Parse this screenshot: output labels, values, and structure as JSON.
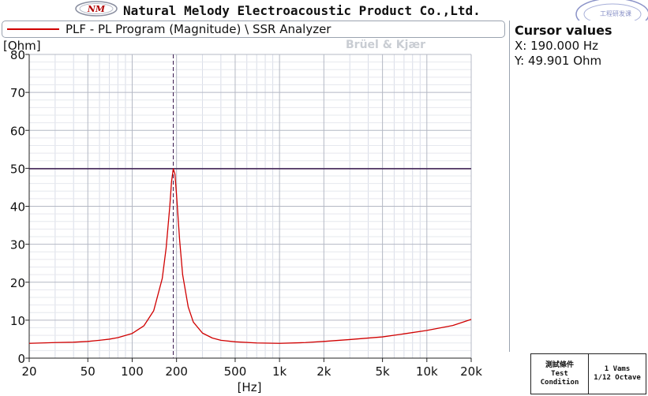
{
  "header": {
    "company": "Natural Melody Electroacoustic Product Co.,Ltd.",
    "logo_text": "NM",
    "stamp_text": "工程研发课"
  },
  "legend": {
    "text": "PLF - PL Program (Magnitude) \\ SSR Analyzer",
    "line_color": "#d00000",
    "watermark": "Brüel & Kjær"
  },
  "cursor_panel": {
    "title": "Cursor values",
    "x_label": "X: 190.000 Hz",
    "y_label": "Y: 49.901 Ohm"
  },
  "test_condition": {
    "label_cn": "測試條件",
    "label_en_1": "Test",
    "label_en_2": "Condition",
    "value_1": "1 Vams",
    "value_2": "1/12 Octave"
  },
  "chart_data": {
    "type": "line",
    "xscale": "log",
    "xlim": [
      20,
      20000
    ],
    "ylim": [
      0,
      80
    ],
    "xlabel": "[Hz]",
    "ylabel": "[Ohm]",
    "xticks": [
      20,
      50,
      100,
      200,
      500,
      1000,
      2000,
      5000,
      10000,
      20000
    ],
    "xtick_labels": [
      "20",
      "50",
      "100",
      "200",
      "500",
      "1k",
      "2k",
      "5k",
      "10k",
      "20k"
    ],
    "yticks": [
      0,
      10,
      20,
      30,
      40,
      50,
      60,
      70,
      80
    ],
    "grid": true,
    "cursor": {
      "x": 190,
      "y": 49.901
    },
    "series": [
      {
        "color": "#d00000",
        "x": [
          20,
          30,
          40,
          50,
          60,
          70,
          80,
          100,
          120,
          140,
          160,
          170,
          180,
          185,
          190,
          195,
          200,
          210,
          220,
          240,
          260,
          300,
          350,
          400,
          500,
          700,
          1000,
          1500,
          2000,
          3000,
          5000,
          7000,
          10000,
          15000,
          20000
        ],
        "y": [
          3.9,
          4.1,
          4.2,
          4.4,
          4.7,
          5.0,
          5.4,
          6.5,
          8.5,
          12.5,
          21,
          29,
          40,
          46.5,
          49.9,
          48.5,
          43,
          31,
          22,
          13.5,
          9.5,
          6.6,
          5.3,
          4.7,
          4.3,
          4.0,
          3.9,
          4.1,
          4.4,
          4.9,
          5.6,
          6.4,
          7.3,
          8.6,
          10.2
        ]
      }
    ]
  }
}
